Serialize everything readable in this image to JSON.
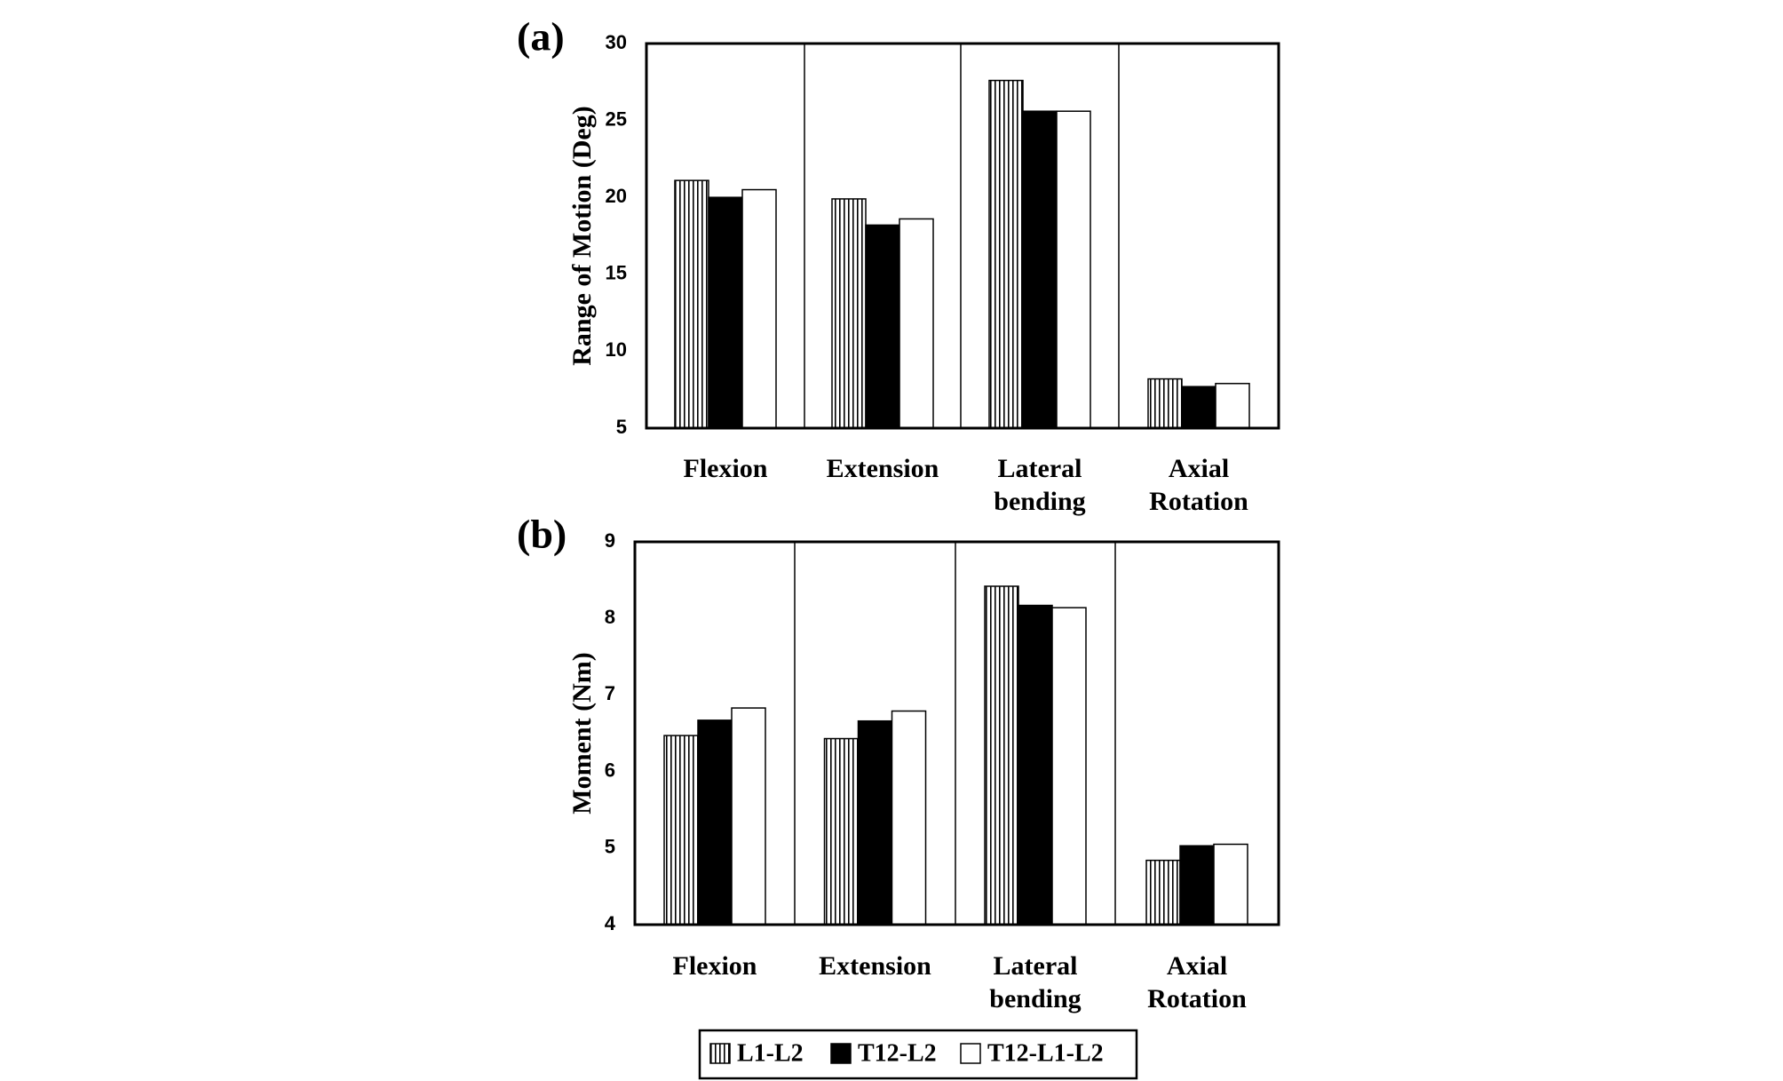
{
  "chart_data": [
    {
      "type": "bar",
      "panel_label": "(a)",
      "ylabel": "Range of Motion (Deg)",
      "ylim": [
        5,
        30
      ],
      "yticks": [
        "5",
        "10",
        "15",
        "20",
        "25",
        "30"
      ],
      "categories": [
        [
          "Flexion"
        ],
        [
          "Extension"
        ],
        [
          "Lateral",
          "bending"
        ],
        [
          "Axial",
          "Rotation"
        ]
      ],
      "series": [
        {
          "name": "L1-L2",
          "values": [
            21.1,
            19.9,
            27.6,
            8.2
          ]
        },
        {
          "name": "T12-L2",
          "values": [
            20.0,
            18.2,
            25.6,
            7.7
          ]
        },
        {
          "name": "T12-L1-L2",
          "values": [
            20.5,
            18.6,
            25.6,
            7.9
          ]
        }
      ],
      "grid": false
    },
    {
      "type": "bar",
      "panel_label": "(b)",
      "ylabel": "Moment (Nm)",
      "ylim": [
        4,
        9
      ],
      "yticks": [
        "4",
        "5",
        "6",
        "7",
        "8",
        "9"
      ],
      "categories": [
        [
          "Flexion"
        ],
        [
          "Extension"
        ],
        [
          "Lateral",
          "bending"
        ],
        [
          "Axial",
          "Rotation"
        ]
      ],
      "series": [
        {
          "name": "L1-L2",
          "values": [
            6.47,
            6.43,
            8.42,
            4.84
          ]
        },
        {
          "name": "T12-L2",
          "values": [
            6.67,
            6.66,
            8.17,
            5.03
          ]
        },
        {
          "name": "T12-L1-L2",
          "values": [
            6.83,
            6.79,
            8.14,
            5.05
          ]
        }
      ],
      "grid": false
    }
  ],
  "legend": {
    "position": "bottom-center",
    "items": [
      {
        "label": "L1-L2",
        "style": "hatched"
      },
      {
        "label": "T12-L2",
        "style": "solid-black"
      },
      {
        "label": "T12-L1-L2",
        "style": "white"
      }
    ]
  },
  "colors": {
    "black": "#000000",
    "white": "#ffffff"
  }
}
